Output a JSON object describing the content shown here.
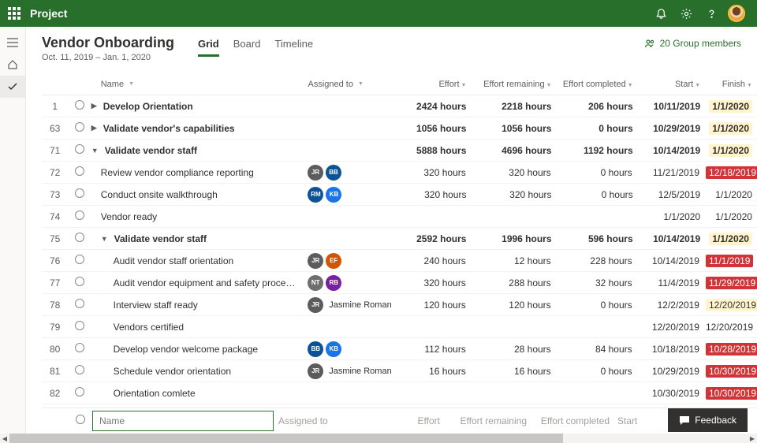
{
  "topbar": {
    "brand": "Project"
  },
  "header": {
    "title": "Vendor Onboarding",
    "dates": "Oct. 11, 2019 – Jan. 1, 2020",
    "members": "20 Group members"
  },
  "tabs": [
    {
      "label": "Grid",
      "active": true
    },
    {
      "label": "Board",
      "active": false
    },
    {
      "label": "Timeline",
      "active": false
    }
  ],
  "columns": {
    "name": "Name",
    "assigned": "Assigned to",
    "effort": "Effort",
    "remaining": "Effort remaining",
    "completed": "Effort completed",
    "start": "Start",
    "finish": "Finish"
  },
  "newrow": {
    "name_ph": "Name",
    "assigned_ph": "Assigned to",
    "effort_ph": "Effort",
    "remaining_ph": "Effort remaining",
    "completed_ph": "Effort completed",
    "start_ph": "Start"
  },
  "feedback": "Feedback",
  "avatar_colors": {
    "JR": "#5c5c5c",
    "BB": "#0b5394",
    "RM": "#0b5394",
    "KB": "#1a73e8",
    "EF": "#d35400",
    "NT": "#6e6e6e",
    "RB": "#7b1fa2"
  },
  "rows": [
    {
      "num": "1",
      "bold": true,
      "exp": "r",
      "ind": 0,
      "name": "Develop Orientation",
      "assignees": [],
      "effort": "2424 hours",
      "rem": "2218 hours",
      "comp": "206 hours",
      "start": "10/11/2019",
      "fin": "1/1/2020",
      "fhl": "y"
    },
    {
      "num": "63",
      "bold": true,
      "exp": "r",
      "ind": 0,
      "name": "Validate vendor's capabilities",
      "assignees": [],
      "effort": "1056 hours",
      "rem": "1056 hours",
      "comp": "0 hours",
      "start": "10/29/2019",
      "fin": "1/1/2020",
      "fhl": "y"
    },
    {
      "num": "71",
      "bold": true,
      "exp": "d",
      "ind": 0,
      "name": "Validate vendor staff",
      "assignees": [],
      "effort": "5888 hours",
      "rem": "4696 hours",
      "comp": "1192 hours",
      "start": "10/14/2019",
      "fin": "1/1/2020",
      "fhl": "y"
    },
    {
      "num": "72",
      "bold": false,
      "exp": "",
      "ind": 1,
      "name": "Review vendor compliance reporting",
      "assignees": [
        {
          "i": "JR",
          "c": "#5c5c5c"
        },
        {
          "i": "BB",
          "c": "#0b5394"
        }
      ],
      "effort": "320 hours",
      "rem": "320 hours",
      "comp": "0 hours",
      "start": "11/21/2019",
      "fin": "12/18/2019",
      "fhl": "r"
    },
    {
      "num": "73",
      "bold": false,
      "exp": "",
      "ind": 1,
      "name": "Conduct onsite walkthrough",
      "assignees": [
        {
          "i": "RM",
          "c": "#0b5394"
        },
        {
          "i": "KB",
          "c": "#1a73e8"
        }
      ],
      "effort": "320 hours",
      "rem": "320 hours",
      "comp": "0 hours",
      "start": "12/5/2019",
      "fin": "1/1/2020",
      "fhl": ""
    },
    {
      "num": "74",
      "bold": false,
      "exp": "",
      "ind": 1,
      "name": "Vendor ready",
      "assignees": [],
      "effort": "",
      "rem": "",
      "comp": "",
      "start": "1/1/2020",
      "fin": "1/1/2020",
      "fhl": ""
    },
    {
      "num": "75",
      "bold": true,
      "exp": "d",
      "ind": 1,
      "name": "Validate vendor staff",
      "assignees": [],
      "effort": "2592 hours",
      "rem": "1996 hours",
      "comp": "596 hours",
      "start": "10/14/2019",
      "fin": "1/1/2020",
      "fhl": "y"
    },
    {
      "num": "76",
      "bold": false,
      "exp": "",
      "ind": 2,
      "name": "Audit vendor staff orientation",
      "assignees": [
        {
          "i": "JR",
          "c": "#5c5c5c"
        },
        {
          "i": "EF",
          "c": "#d35400"
        }
      ],
      "effort": "240 hours",
      "rem": "12 hours",
      "comp": "228 hours",
      "start": "10/14/2019",
      "fin": "11/1/2019",
      "fhl": "r"
    },
    {
      "num": "77",
      "bold": false,
      "exp": "",
      "ind": 2,
      "name": "Audit vendor equipment and safety proce…",
      "assignees": [
        {
          "i": "NT",
          "c": "#6e6e6e"
        },
        {
          "i": "RB",
          "c": "#7b1fa2"
        }
      ],
      "effort": "320 hours",
      "rem": "288 hours",
      "comp": "32 hours",
      "start": "11/4/2019",
      "fin": "11/29/2019",
      "fhl": "r"
    },
    {
      "num": "78",
      "bold": false,
      "exp": "",
      "ind": 2,
      "name": "Interview staff ready",
      "assignees": [
        {
          "i": "JR",
          "c": "#5c5c5c"
        }
      ],
      "aname": "Jasmine Roman",
      "effort": "120 hours",
      "rem": "120 hours",
      "comp": "0 hours",
      "start": "12/2/2019",
      "fin": "12/20/2019",
      "fhl": "y"
    },
    {
      "num": "79",
      "bold": false,
      "exp": "",
      "ind": 2,
      "name": "Vendors certified",
      "assignees": [],
      "effort": "",
      "rem": "",
      "comp": "",
      "start": "12/20/2019",
      "fin": "12/20/2019",
      "fhl": ""
    },
    {
      "num": "80",
      "bold": false,
      "exp": "",
      "ind": 2,
      "name": "Develop vendor welcome package",
      "assignees": [
        {
          "i": "BB",
          "c": "#0b5394"
        },
        {
          "i": "KB",
          "c": "#1a73e8"
        }
      ],
      "effort": "112 hours",
      "rem": "28 hours",
      "comp": "84 hours",
      "start": "10/18/2019",
      "fin": "10/28/2019",
      "fhl": "r"
    },
    {
      "num": "81",
      "bold": false,
      "exp": "",
      "ind": 2,
      "name": "Schedule vendor orientation",
      "assignees": [
        {
          "i": "JR",
          "c": "#5c5c5c"
        }
      ],
      "aname": "Jasmine Roman",
      "effort": "16 hours",
      "rem": "16 hours",
      "comp": "0 hours",
      "start": "10/29/2019",
      "fin": "10/30/2019",
      "fhl": "r"
    },
    {
      "num": "82",
      "bold": false,
      "exp": "",
      "ind": 2,
      "name": "Orientation comlete",
      "assignees": [],
      "effort": "",
      "rem": "",
      "comp": "",
      "start": "10/30/2019",
      "fin": "10/30/2019",
      "fhl": "r"
    }
  ]
}
